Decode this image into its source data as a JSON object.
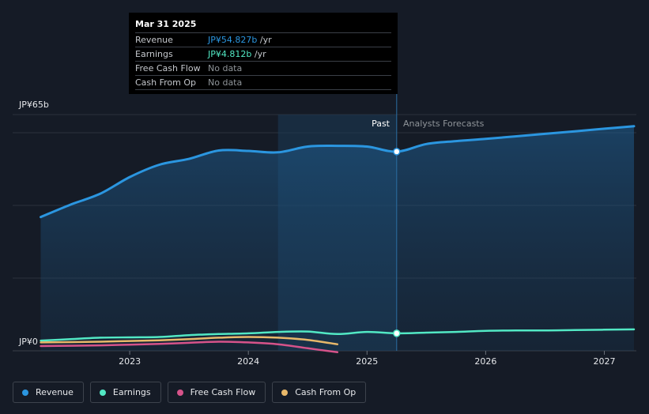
{
  "tooltip": {
    "date": "Mar 31 2025",
    "rows": [
      {
        "label": "Revenue",
        "value": "JP¥54.827b",
        "unit": "/yr"
      },
      {
        "label": "Earnings",
        "value": "JP¥4.812b",
        "unit": "/yr"
      },
      {
        "label": "Free Cash Flow",
        "value": "No data"
      },
      {
        "label": "Cash From Op",
        "value": "No data"
      }
    ]
  },
  "legend": [
    {
      "label": "Revenue",
      "color": "#2b96e0"
    },
    {
      "label": "Earnings",
      "color": "#52e8c4"
    },
    {
      "label": "Free Cash Flow",
      "color": "#d6538a"
    },
    {
      "label": "Cash From Op",
      "color": "#e8b86a"
    }
  ],
  "chart_data": {
    "type": "line",
    "y_top_label": "JP¥65b",
    "y_zero_label": "JP¥0",
    "ylim": [
      0,
      65
    ],
    "xlim": [
      2022.2,
      2027.27
    ],
    "x_ticks": [
      {
        "value": 2023,
        "label": "2023"
      },
      {
        "value": 2024,
        "label": "2024"
      },
      {
        "value": 2025,
        "label": "2025"
      },
      {
        "value": 2026,
        "label": "2026"
      },
      {
        "value": 2027,
        "label": "2027"
      }
    ],
    "gridlines": [
      0,
      20,
      40,
      60
    ],
    "past_label": "Past",
    "forecast_label": "Analysts Forecasts",
    "past_shade_start": 2024.25,
    "forecast_start": 2025.25,
    "highlight_x": 2025.25,
    "legend_position": "bottom",
    "series": [
      {
        "name": "Revenue",
        "color": "#2b96e0",
        "area": true,
        "x": [
          2022.25,
          2022.5,
          2022.75,
          2023.0,
          2023.25,
          2023.5,
          2023.75,
          2024.0,
          2024.25,
          2024.5,
          2024.75,
          2025.0,
          2025.25,
          2025.5,
          2025.75,
          2026.0,
          2026.25,
          2026.5,
          2026.75,
          2027.0,
          2027.25
        ],
        "y": [
          36.8,
          40.2,
          43.2,
          47.8,
          51.2,
          52.8,
          55.1,
          55.0,
          54.6,
          56.2,
          56.4,
          56.2,
          54.8,
          56.9,
          57.7,
          58.3,
          59.0,
          59.7,
          60.4,
          61.1,
          61.8
        ]
      },
      {
        "name": "Earnings",
        "color": "#52e8c4",
        "x": [
          2022.25,
          2022.5,
          2022.75,
          2023.0,
          2023.25,
          2023.5,
          2023.75,
          2024.0,
          2024.25,
          2024.5,
          2024.75,
          2025.0,
          2025.25,
          2025.5,
          2025.75,
          2026.0,
          2026.25,
          2026.5,
          2026.75,
          2027.0,
          2027.25
        ],
        "y": [
          2.8,
          3.2,
          3.6,
          3.7,
          3.8,
          4.3,
          4.6,
          4.8,
          5.2,
          5.3,
          4.6,
          5.2,
          4.8,
          5.0,
          5.2,
          5.5,
          5.6,
          5.6,
          5.7,
          5.8,
          5.9
        ]
      },
      {
        "name": "Cash From Op",
        "color": "#e8b86a",
        "x": [
          2022.25,
          2022.5,
          2022.75,
          2023.0,
          2023.25,
          2023.5,
          2023.75,
          2024.0,
          2024.25,
          2024.5,
          2024.75
        ],
        "y": [
          2.3,
          2.4,
          2.5,
          2.7,
          2.9,
          3.2,
          3.6,
          3.8,
          3.6,
          3.0,
          1.8
        ]
      },
      {
        "name": "Free Cash Flow",
        "color": "#d6538a",
        "x": [
          2022.25,
          2022.5,
          2022.75,
          2023.0,
          2023.25,
          2023.5,
          2023.75,
          2024.0,
          2024.25,
          2024.5,
          2024.75
        ],
        "y": [
          1.3,
          1.4,
          1.5,
          1.7,
          1.9,
          2.2,
          2.5,
          2.3,
          1.8,
          0.7,
          -0.4
        ]
      }
    ]
  }
}
